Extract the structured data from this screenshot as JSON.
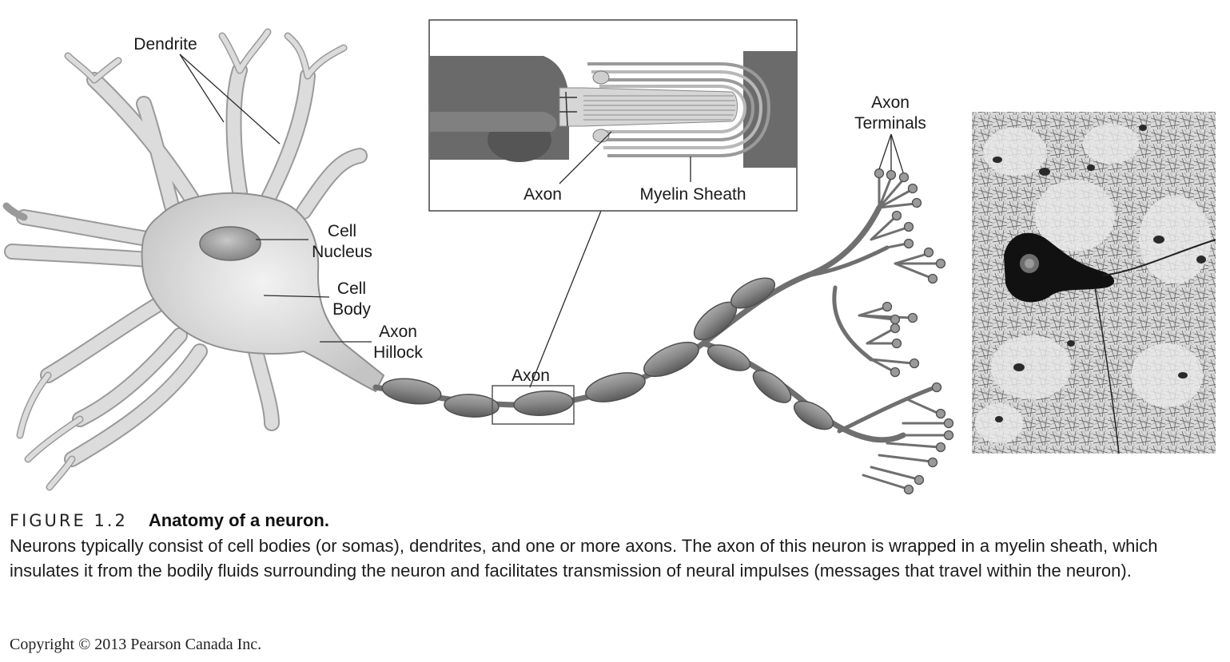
{
  "labels": {
    "dendrite": "Dendrite",
    "cell_nucleus": [
      "Cell",
      "Nucleus"
    ],
    "cell_body": [
      "Cell",
      "Body"
    ],
    "axon_hillock": [
      "Axon",
      "Hillock"
    ],
    "axon": "Axon",
    "axon_terminals": [
      "Axon",
      "Terminals"
    ],
    "inset_axon": "Axon",
    "inset_myelin_sheath": "Myelin Sheath"
  },
  "caption": {
    "figure_number": "FIGURE 1.2",
    "title": "Anatomy of a neuron.",
    "description": "Neurons typically consist of cell bodies (or somas), dendrites, and one or more axons. The axon of this neuron is wrapped in a myelin sheath, which insulates it from the bodily fluids surrounding the neuron and facilitates transmission of neural impulses (messages that travel within the neuron)."
  },
  "copyright": "Copyright © 2013 Pearson Canada Inc."
}
